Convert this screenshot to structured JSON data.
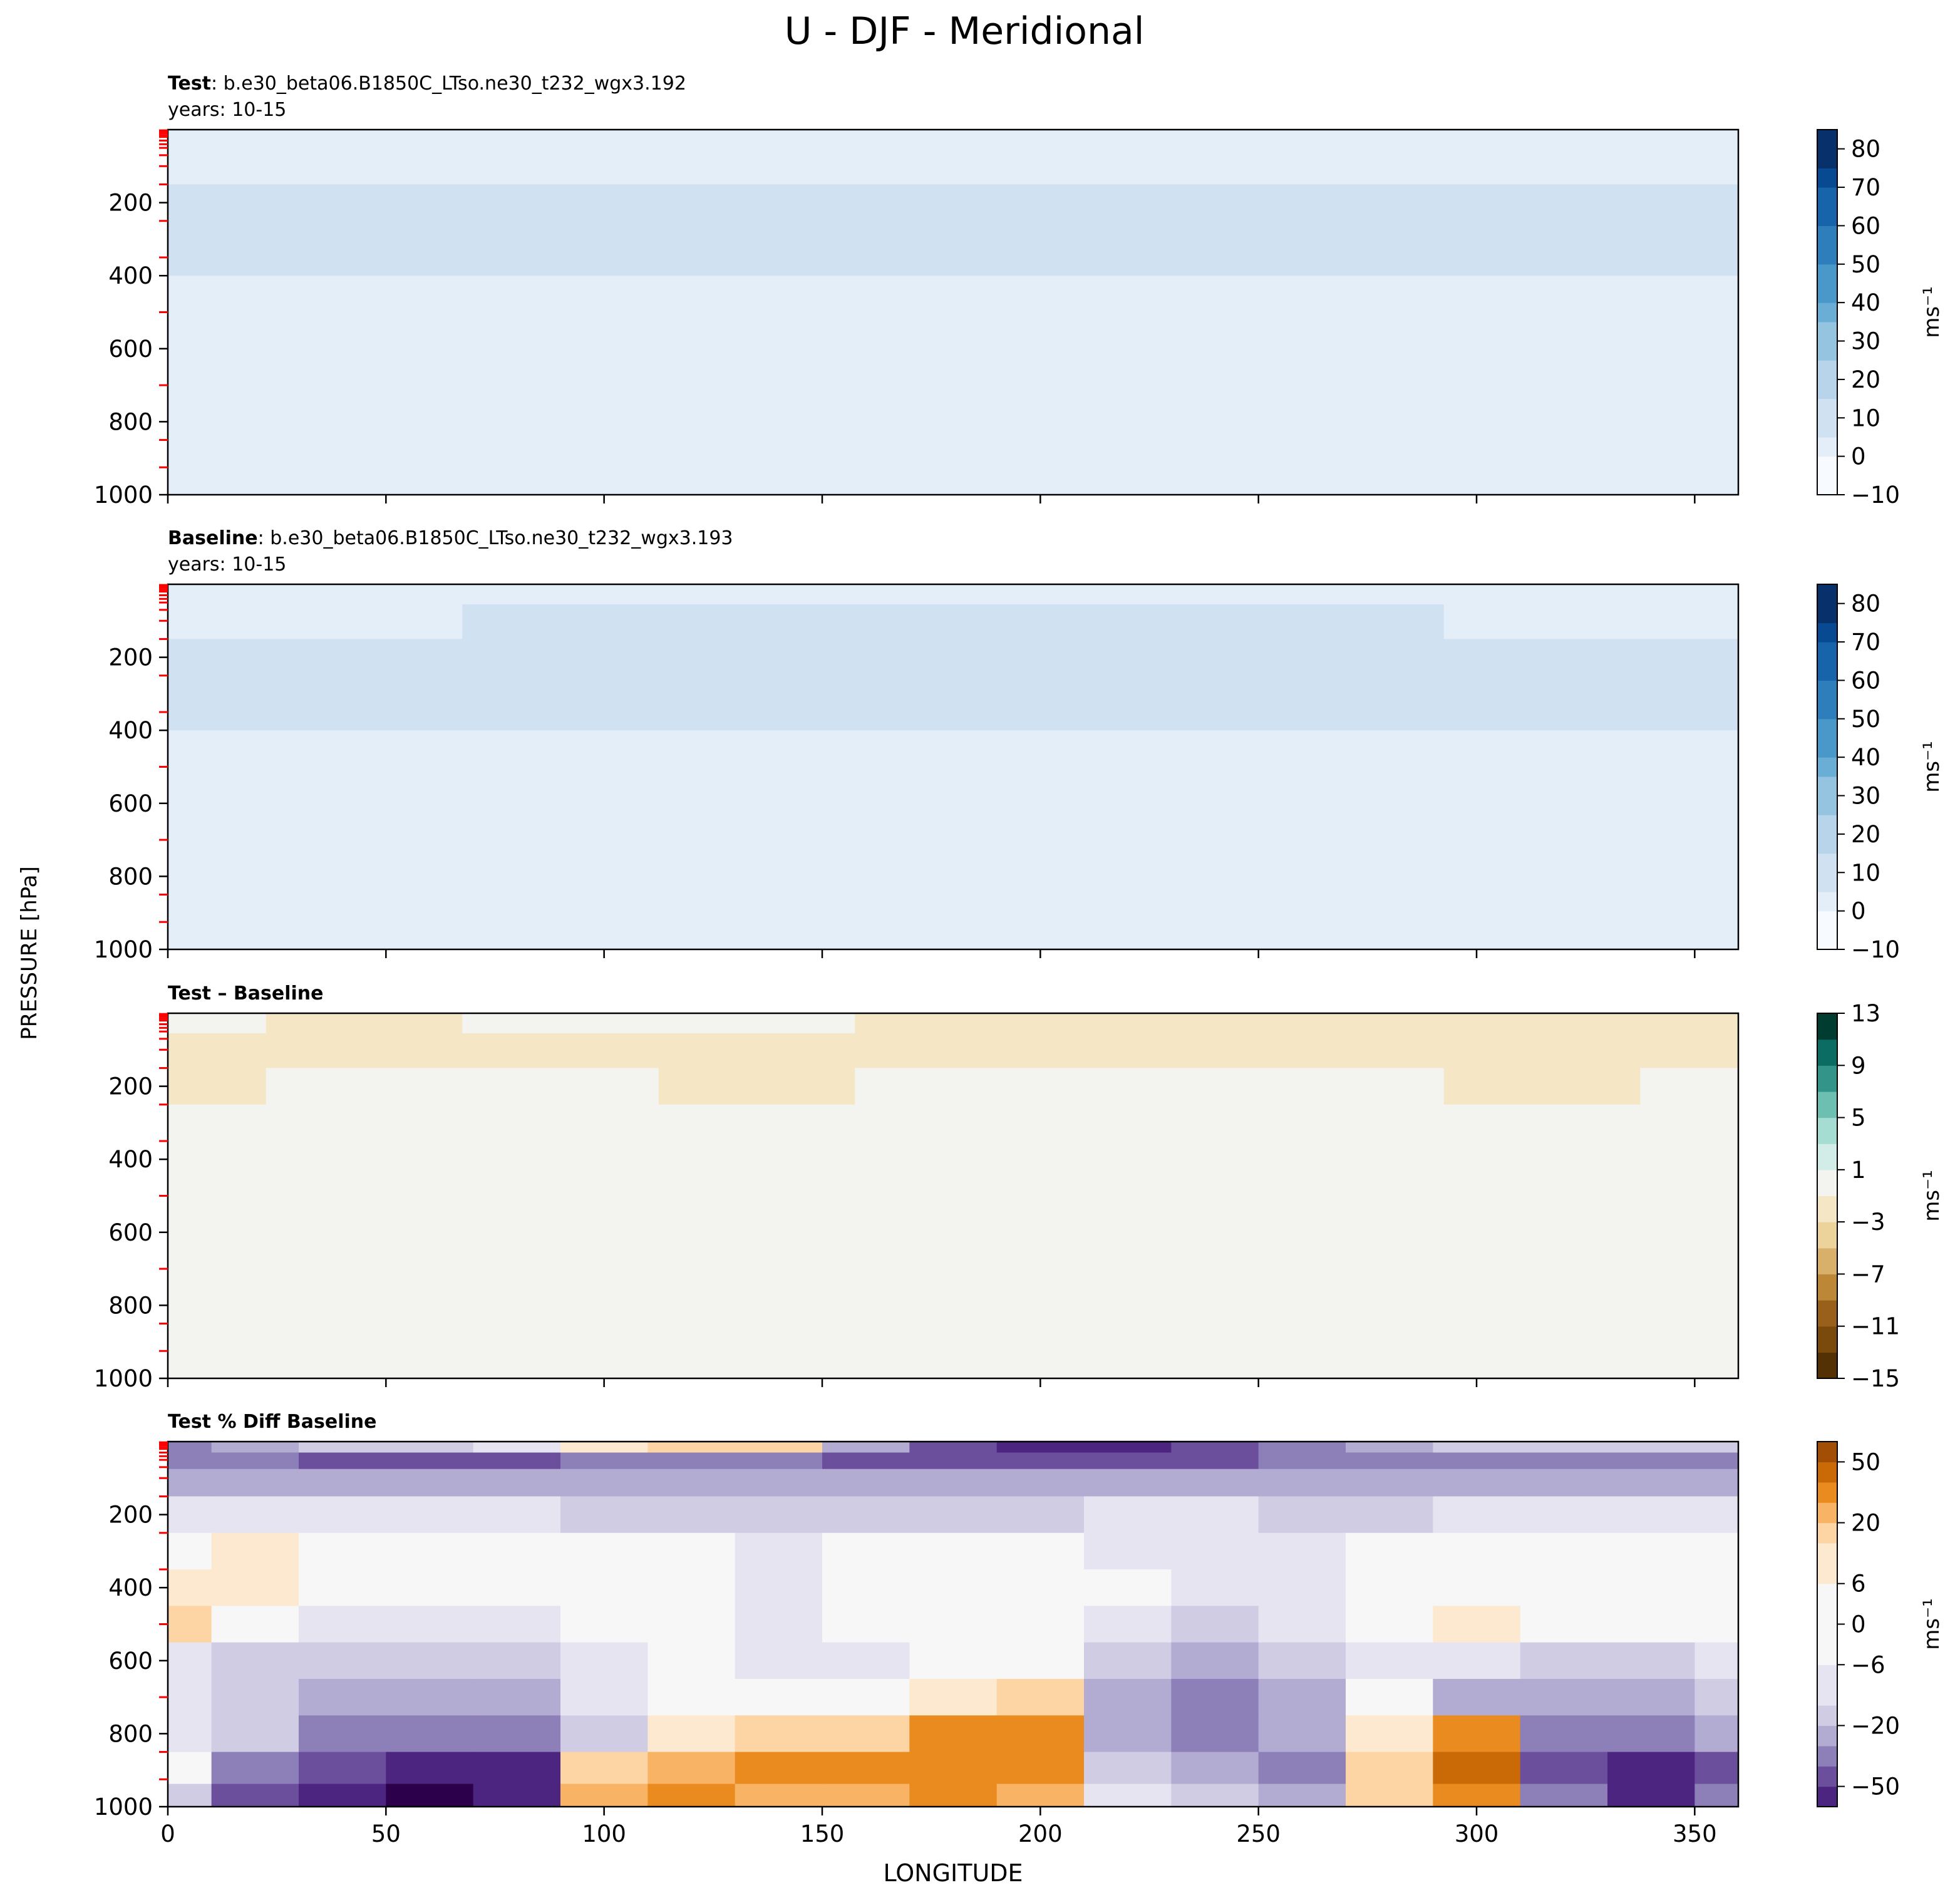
{
  "figure": {
    "title": "U - DJF - Meridional",
    "ylabel": "PRESSURE [hPa]",
    "xlabel": "LONGITUDE"
  },
  "colors": {
    "blues_ramp": [
      "#f7fbff",
      "#e3eef9",
      "#d0e1f2",
      "#b7d4ea",
      "#94c4df",
      "#6aaed6",
      "#4a98c9",
      "#2e7ebc",
      "#1764ab",
      "#084a91",
      "#08306b"
    ],
    "brbg_ramp": [
      "#543005",
      "#7a4a0c",
      "#98601a",
      "#bd8738",
      "#d8b06a",
      "#ecd39c",
      "#f5e7c5",
      "#f3f3f0",
      "#d2ece8",
      "#a6ddd2",
      "#6cbfb1",
      "#33948a",
      "#0a6c63",
      "#003c30"
    ],
    "puor_ramp": [
      "#2d004b",
      "#4b2580",
      "#6b4f9c",
      "#8d80b8",
      "#b2abd2",
      "#d0cce4",
      "#e6e4f0",
      "#f7f7f7",
      "#fde9d0",
      "#fdd4a4",
      "#f8b364",
      "#e98b1e",
      "#c96a06",
      "#a24e05",
      "#7f3b08"
    ],
    "tick_red": "#ff0000"
  },
  "panels": [
    {
      "name": "test",
      "label_bold": "Test",
      "label_rest": ": b.e30_beta06.B1850C_LTso.ne30_t232_wgx3.192",
      "subtitle": "years: 10-15",
      "colorbar": {
        "units": "ms⁻¹",
        "ticks": [
          "80",
          "70",
          "60",
          "50",
          "40",
          "30",
          "20",
          "10",
          "0",
          "−10"
        ]
      }
    },
    {
      "name": "baseline",
      "label_bold": "Baseline",
      "label_rest": ": b.e30_beta06.B1850C_LTso.ne30_t232_wgx3.193",
      "subtitle": "years: 10-15",
      "colorbar": {
        "units": "ms⁻¹",
        "ticks": [
          "80",
          "70",
          "60",
          "50",
          "40",
          "30",
          "20",
          "10",
          "0",
          "−10"
        ]
      }
    },
    {
      "name": "diff",
      "label_bold": "Test – Baseline",
      "label_rest": "",
      "subtitle": "",
      "colorbar": {
        "units": "ms⁻¹",
        "ticks": [
          "13",
          "9",
          "5",
          "1",
          "−3",
          "−7",
          "−11",
          "−15"
        ]
      }
    },
    {
      "name": "pctdiff",
      "label_bold": "Test % Diff Baseline",
      "label_rest": "",
      "subtitle": "",
      "colorbar": {
        "units": "ms⁻¹",
        "ticks": [
          "50",
          "20",
          "6",
          "0",
          "−6",
          "−20",
          "−50"
        ]
      }
    }
  ],
  "chart_data": [
    {
      "type": "heatmap",
      "title": "Test: b.e30_beta06.B1850C_LTso.ne30_t232_wgx3.192",
      "subtitle": "years: 10-15",
      "xlabel": "LONGITUDE",
      "ylabel": "PRESSURE [hPa]",
      "units": "ms⁻¹",
      "xlim": [
        0,
        360
      ],
      "ylim": [
        1000,
        0
      ],
      "xticks": [
        0,
        50,
        100,
        150,
        200,
        250,
        300,
        350
      ],
      "yticks": [
        200,
        400,
        600,
        800,
        1000
      ],
      "levels": [
        -10,
        -5,
        0,
        5,
        10,
        15,
        20,
        25,
        30,
        35,
        40,
        45,
        50,
        55,
        60,
        65,
        70,
        75,
        80,
        85
      ],
      "colorbar_ticks": [
        -10,
        0,
        10,
        20,
        30,
        40,
        50,
        60,
        70,
        80
      ],
      "colormap": "Blues",
      "x": [
        0,
        45,
        90,
        135,
        180,
        225,
        270,
        315,
        360
      ],
      "y": [
        10,
        100,
        200,
        300,
        500,
        700,
        850,
        950
      ],
      "z": [
        [
          0,
          1,
          1,
          2,
          2,
          2,
          2,
          1,
          0
        ],
        [
          4,
          5,
          6,
          6,
          6,
          6,
          6,
          5,
          4
        ],
        [
          11,
          10,
          11,
          12,
          12,
          12,
          12,
          12,
          11
        ],
        [
          9,
          9,
          10,
          10,
          10,
          10,
          10,
          10,
          9
        ],
        [
          7,
          7,
          7,
          7,
          7,
          7,
          7,
          7,
          7
        ],
        [
          4,
          4,
          4,
          4,
          4,
          4,
          4,
          4,
          4
        ],
        [
          2,
          2,
          2,
          2,
          1,
          1,
          2,
          2,
          2
        ],
        [
          0,
          0,
          0,
          0,
          -1,
          -1,
          0,
          0,
          0
        ]
      ]
    },
    {
      "type": "heatmap",
      "title": "Baseline: b.e30_beta06.B1850C_LTso.ne30_t232_wgx3.193",
      "subtitle": "years: 10-15",
      "xlabel": "LONGITUDE",
      "ylabel": "PRESSURE [hPa]",
      "units": "ms⁻¹",
      "xlim": [
        0,
        360
      ],
      "ylim": [
        1000,
        0
      ],
      "xticks": [
        0,
        50,
        100,
        150,
        200,
        250,
        300,
        350
      ],
      "yticks": [
        200,
        400,
        600,
        800,
        1000
      ],
      "levels": [
        -10,
        -5,
        0,
        5,
        10,
        15,
        20,
        25,
        30,
        35,
        40,
        45,
        50,
        55,
        60,
        65,
        70,
        75,
        80,
        85
      ],
      "colorbar_ticks": [
        -10,
        0,
        10,
        20,
        30,
        40,
        50,
        60,
        70,
        80
      ],
      "colormap": "Blues",
      "x": [
        0,
        45,
        90,
        135,
        180,
        225,
        270,
        315,
        360
      ],
      "y": [
        10,
        100,
        200,
        300,
        500,
        700,
        850,
        950
      ],
      "z": [
        [
          1,
          2,
          2,
          3,
          3,
          3,
          3,
          2,
          1
        ],
        [
          6,
          7,
          8,
          8,
          8,
          8,
          8,
          7,
          6
        ],
        [
          12,
          12,
          12,
          13,
          13,
          13,
          13,
          13,
          12
        ],
        [
          10,
          10,
          11,
          11,
          11,
          11,
          11,
          11,
          10
        ],
        [
          7,
          7,
          7,
          7,
          7,
          7,
          7,
          7,
          7
        ],
        [
          4,
          4,
          4,
          4,
          4,
          4,
          4,
          4,
          4
        ],
        [
          2,
          2,
          2,
          2,
          1,
          1,
          2,
          2,
          2
        ],
        [
          0,
          0,
          0,
          0,
          -1,
          -1,
          0,
          0,
          0
        ]
      ]
    },
    {
      "type": "heatmap",
      "title": "Test – Baseline",
      "xlabel": "LONGITUDE",
      "ylabel": "PRESSURE [hPa]",
      "units": "ms⁻¹",
      "xlim": [
        0,
        360
      ],
      "ylim": [
        1000,
        0
      ],
      "xticks": [
        0,
        50,
        100,
        150,
        200,
        250,
        300,
        350
      ],
      "yticks": [
        200,
        400,
        600,
        800,
        1000
      ],
      "levels": [
        -15,
        -13,
        -11,
        -9,
        -7,
        -5,
        -3,
        -1,
        1,
        3,
        5,
        7,
        9,
        11,
        13
      ],
      "colorbar_ticks": [
        -15,
        -11,
        -7,
        -3,
        1,
        5,
        9,
        13
      ],
      "colormap": "BrBG",
      "x": [
        0,
        45,
        90,
        135,
        180,
        225,
        270,
        315,
        360
      ],
      "y": [
        10,
        100,
        200,
        300,
        500,
        700,
        850,
        950
      ],
      "z": [
        [
          -0.5,
          -1.2,
          -1,
          -0.8,
          -1.5,
          -1.5,
          -1.5,
          -1.5,
          -1.5
        ],
        [
          -1.5,
          -1.5,
          -1.5,
          -1.5,
          -1.5,
          -1.5,
          -1.5,
          -1.5,
          -1.5
        ],
        [
          -1.2,
          -0.8,
          -0.8,
          -1.2,
          -0.8,
          -0.8,
          -0.8,
          -1.1,
          -0.8
        ],
        [
          0,
          0,
          0,
          0,
          0,
          0,
          0,
          0,
          0
        ],
        [
          0,
          0,
          0,
          0,
          0,
          0,
          0,
          0,
          0
        ],
        [
          0,
          0,
          0,
          0,
          0,
          0,
          0,
          0,
          0
        ],
        [
          0,
          0,
          0,
          0,
          0,
          0,
          0,
          0,
          0
        ],
        [
          0,
          0,
          0,
          0,
          0,
          0,
          0,
          0,
          0
        ]
      ]
    },
    {
      "type": "heatmap",
      "title": "Test % Diff Baseline",
      "xlabel": "LONGITUDE",
      "ylabel": "PRESSURE [hPa]",
      "units": "ms⁻¹",
      "xlim": [
        0,
        360
      ],
      "ylim": [
        1000,
        0
      ],
      "xticks": [
        0,
        50,
        100,
        150,
        200,
        250,
        300,
        350
      ],
      "yticks": [
        200,
        400,
        600,
        800,
        1000
      ],
      "levels": [
        -70,
        -50,
        -40,
        -30,
        -20,
        -15,
        -10,
        -6,
        -3,
        0,
        3,
        6,
        10,
        15,
        20,
        30,
        40,
        50,
        70
      ],
      "colorbar_ticks": [
        -50,
        -20,
        -6,
        0,
        6,
        20,
        50
      ],
      "colormap": "PuOr_r",
      "x": [
        0,
        20,
        40,
        60,
        80,
        100,
        120,
        140,
        160,
        180,
        200,
        220,
        240,
        260,
        280,
        300,
        320,
        340,
        360
      ],
      "y": [
        10,
        50,
        100,
        200,
        300,
        400,
        500,
        600,
        700,
        800,
        900,
        975
      ],
      "z": [
        [
          -40,
          -30,
          -20,
          -20,
          -10,
          6,
          15,
          20,
          -30,
          -50,
          -60,
          -60,
          -50,
          -40,
          -30,
          -20,
          -20,
          -20,
          -20
        ],
        [
          -40,
          -40,
          -45,
          -45,
          -45,
          -40,
          -40,
          -40,
          -45,
          -45,
          -45,
          -45,
          -45,
          -40,
          -40,
          -40,
          -40,
          -40,
          -40
        ],
        [
          -25,
          -25,
          -30,
          -30,
          -30,
          -25,
          -25,
          -25,
          -25,
          -25,
          -25,
          -25,
          -25,
          -25,
          -25,
          -25,
          -25,
          -25,
          -25
        ],
        [
          -12,
          -10,
          -10,
          -10,
          -12,
          -15,
          -15,
          -15,
          -15,
          -15,
          -15,
          -12,
          -12,
          -15,
          -15,
          -12,
          -12,
          -12,
          -12
        ],
        [
          3,
          5,
          -3,
          -3,
          0,
          -3,
          -3,
          -5,
          -3,
          -3,
          -3,
          -5,
          -8,
          -5,
          -3,
          -3,
          -3,
          -3,
          -3
        ],
        [
          8,
          6,
          -3,
          -3,
          -3,
          0,
          -3,
          -5,
          -3,
          -3,
          0,
          -3,
          -8,
          -6,
          0,
          3,
          3,
          -3,
          3
        ],
        [
          15,
          3,
          -6,
          -10,
          -10,
          -3,
          -3,
          -6,
          -3,
          3,
          0,
          -10,
          -15,
          -10,
          -3,
          8,
          4,
          -3,
          0
        ],
        [
          -6,
          -15,
          -20,
          -20,
          -15,
          -6,
          -3,
          -6,
          -6,
          -3,
          -3,
          -20,
          -30,
          -20,
          -6,
          -10,
          -20,
          -15,
          -6
        ],
        [
          -10,
          -20,
          -30,
          -30,
          -25,
          -10,
          0,
          -3,
          -3,
          10,
          20,
          -30,
          -35,
          -30,
          -3,
          -25,
          -30,
          -25,
          -15
        ],
        [
          -6,
          -15,
          -35,
          -40,
          -35,
          -15,
          6,
          15,
          20,
          40,
          40,
          -25,
          -40,
          -30,
          10,
          40,
          -35,
          -40,
          -30
        ],
        [
          0,
          -40,
          -50,
          -60,
          -60,
          20,
          30,
          40,
          40,
          40,
          35,
          -20,
          -30,
          -40,
          20,
          50,
          -50,
          -60,
          -50
        ],
        [
          -20,
          -50,
          -60,
          -70,
          -60,
          30,
          40,
          30,
          30,
          35,
          25,
          -10,
          -20,
          -30,
          20,
          40,
          -40,
          -60,
          -40
        ]
      ]
    }
  ]
}
